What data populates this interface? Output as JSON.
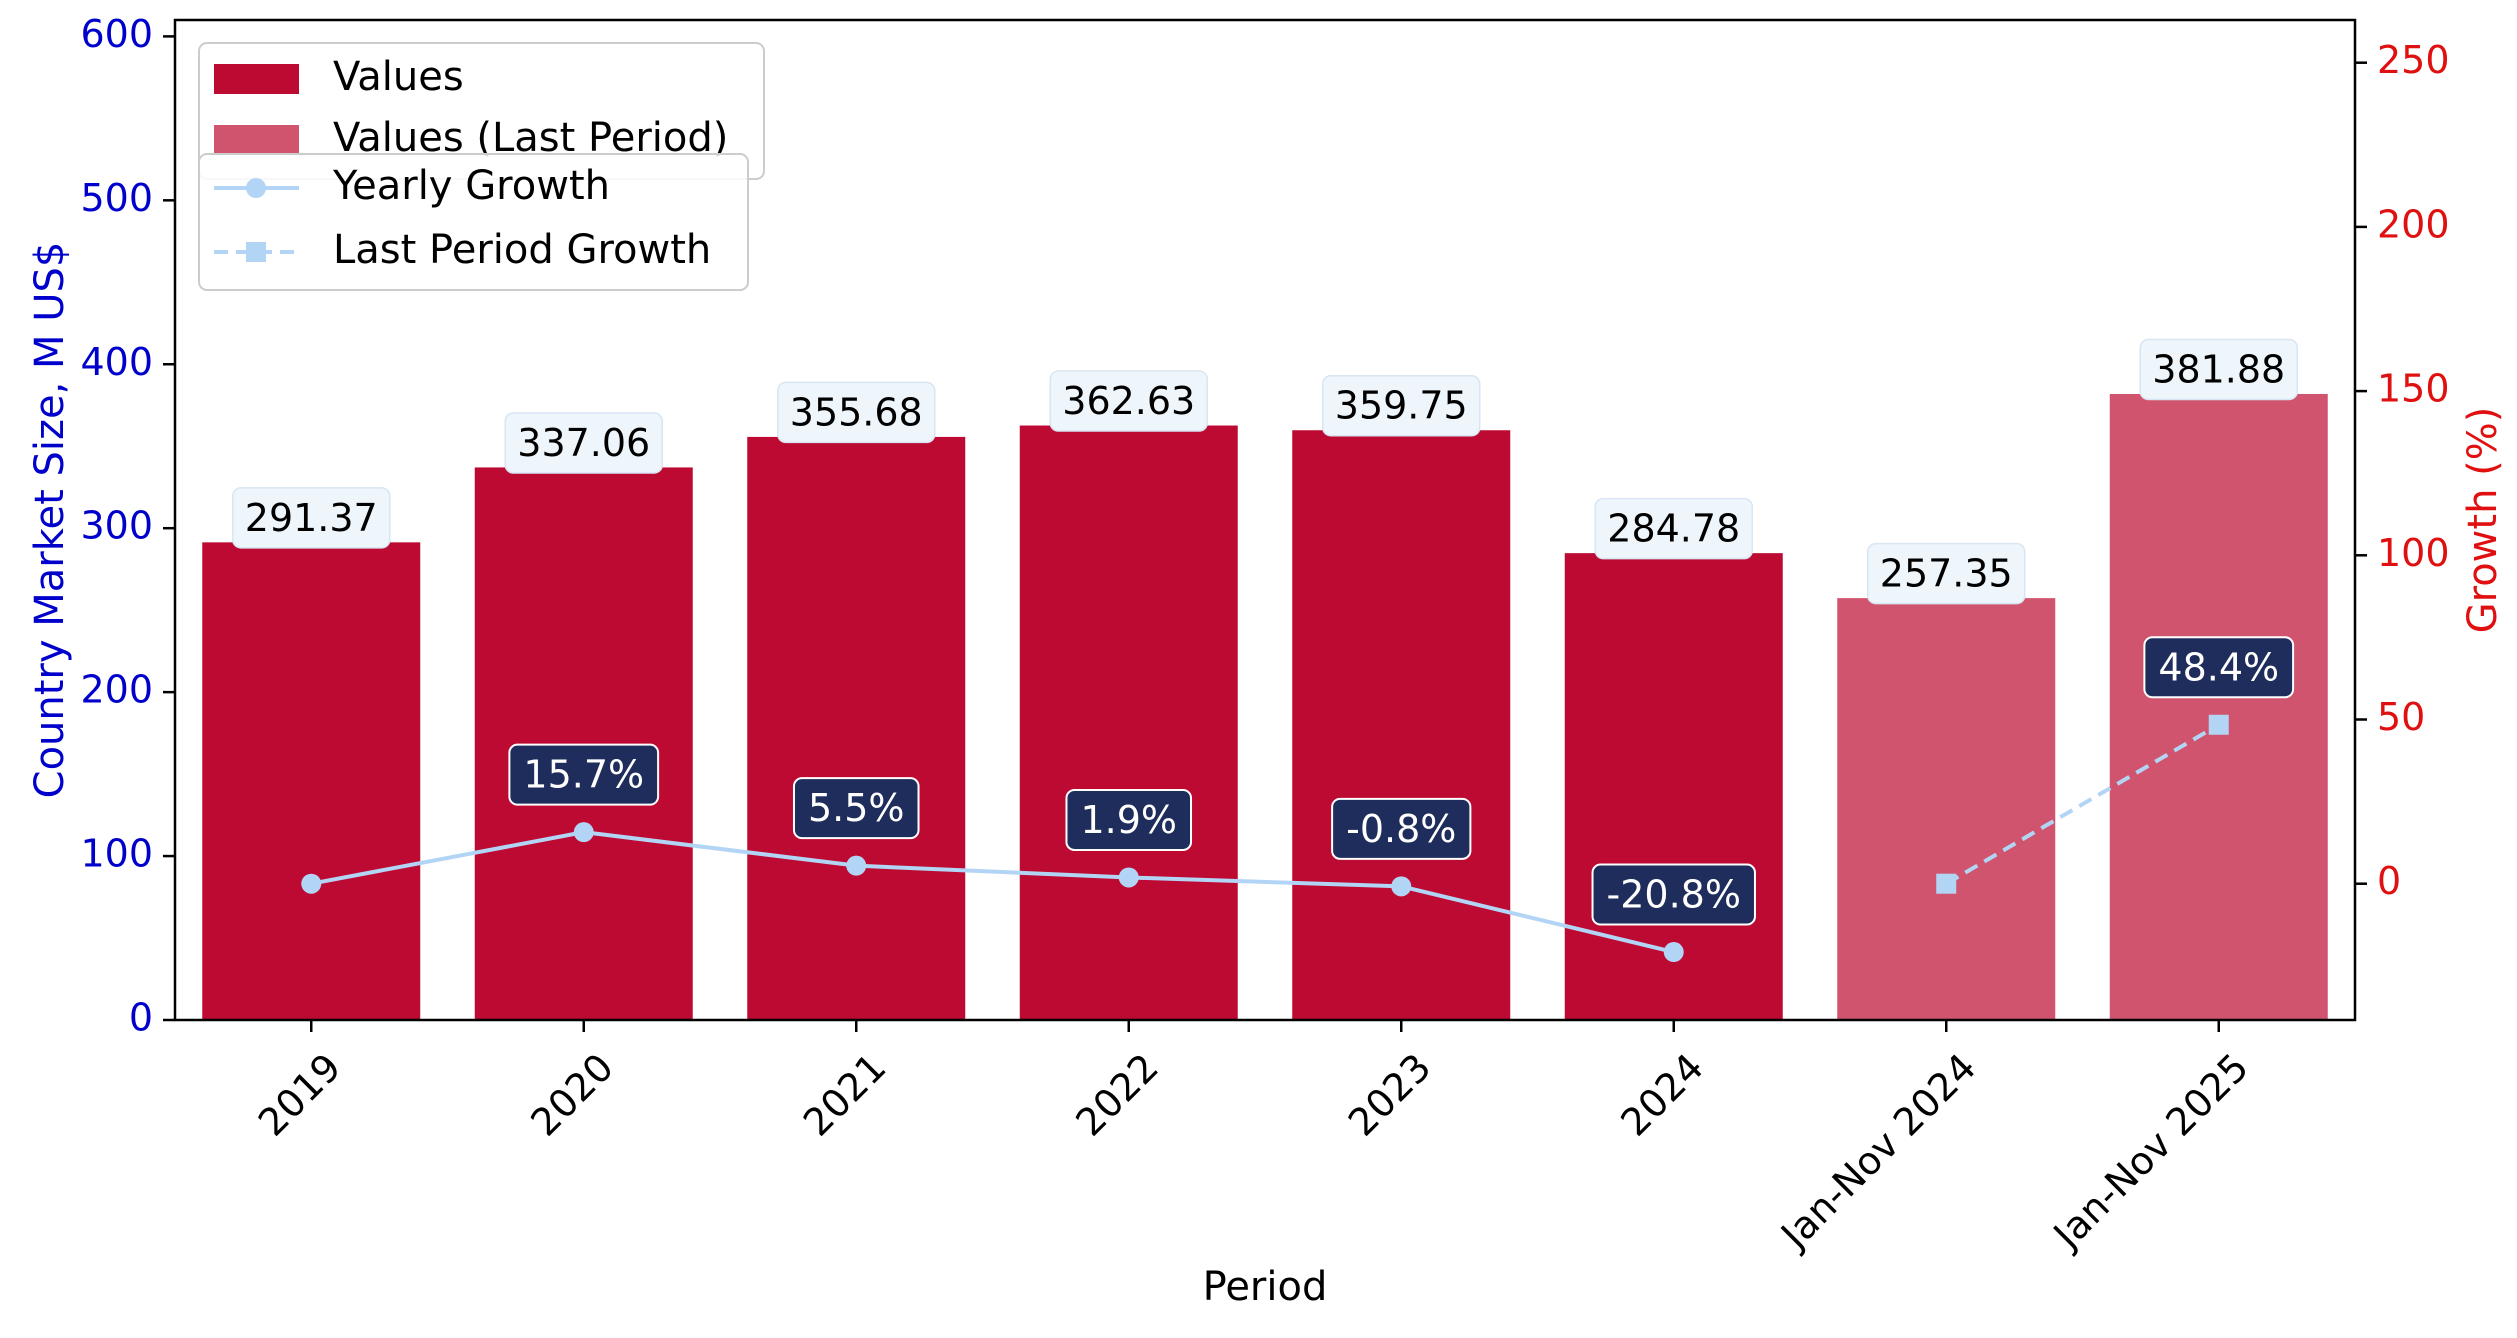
{
  "chart_data": {
    "type": "bar",
    "categories": [
      "2019",
      "2020",
      "2021",
      "2022",
      "2023",
      "2024",
      "Jan-Nov 2024",
      "Jan-Nov 2025"
    ],
    "values": [
      291.37,
      337.06,
      355.68,
      362.63,
      359.75,
      284.78,
      257.35,
      381.88
    ],
    "value_labels": [
      "291.37",
      "337.06",
      "355.68",
      "362.63",
      "359.75",
      "284.78",
      "257.35",
      "381.88"
    ],
    "bar_kind": [
      "values",
      "values",
      "values",
      "values",
      "values",
      "values",
      "last",
      "last"
    ],
    "series": [
      {
        "name": "Values",
        "color": "#bd0a32"
      },
      {
        "name": "Values (Last Period)",
        "color": "#d0546d"
      },
      {
        "name": "Yearly Growth",
        "type": "line",
        "style": "solid",
        "marker": "circle",
        "color": "#b3d5f5",
        "x": [
          "2019",
          "2020",
          "2021",
          "2022",
          "2023",
          "2024"
        ],
        "values": [
          0,
          15.7,
          5.5,
          1.9,
          -0.8,
          -20.8
        ],
        "labels": [
          "",
          "15.7%",
          "5.5%",
          "1.9%",
          "-0.8%",
          "-20.8%"
        ]
      },
      {
        "name": "Last Period Growth",
        "type": "line",
        "style": "dashed",
        "marker": "square",
        "color": "#b3d5f5",
        "x": [
          "Jan-Nov 2024",
          "Jan-Nov 2025"
        ],
        "values": [
          0,
          48.4
        ],
        "labels": [
          "",
          "48.4%"
        ]
      }
    ],
    "xlabel": "Period",
    "ylabel": "Country Market Size, M US$",
    "y2label": "Growth (%)",
    "ylim": [
      0,
      610
    ],
    "y2lim": [
      -41.5,
      263
    ],
    "yticks": [
      0,
      100,
      200,
      300,
      400,
      500,
      600
    ],
    "y2ticks": [
      0,
      50,
      100,
      150,
      200,
      250
    ],
    "grid": false,
    "legend_placement": "top-left",
    "colors": {
      "left_axis": "#0000cc",
      "right_axis": "#e01010",
      "growth_label_bg": "#1f2d5c",
      "value_label_bg": "#eef5fb"
    }
  }
}
